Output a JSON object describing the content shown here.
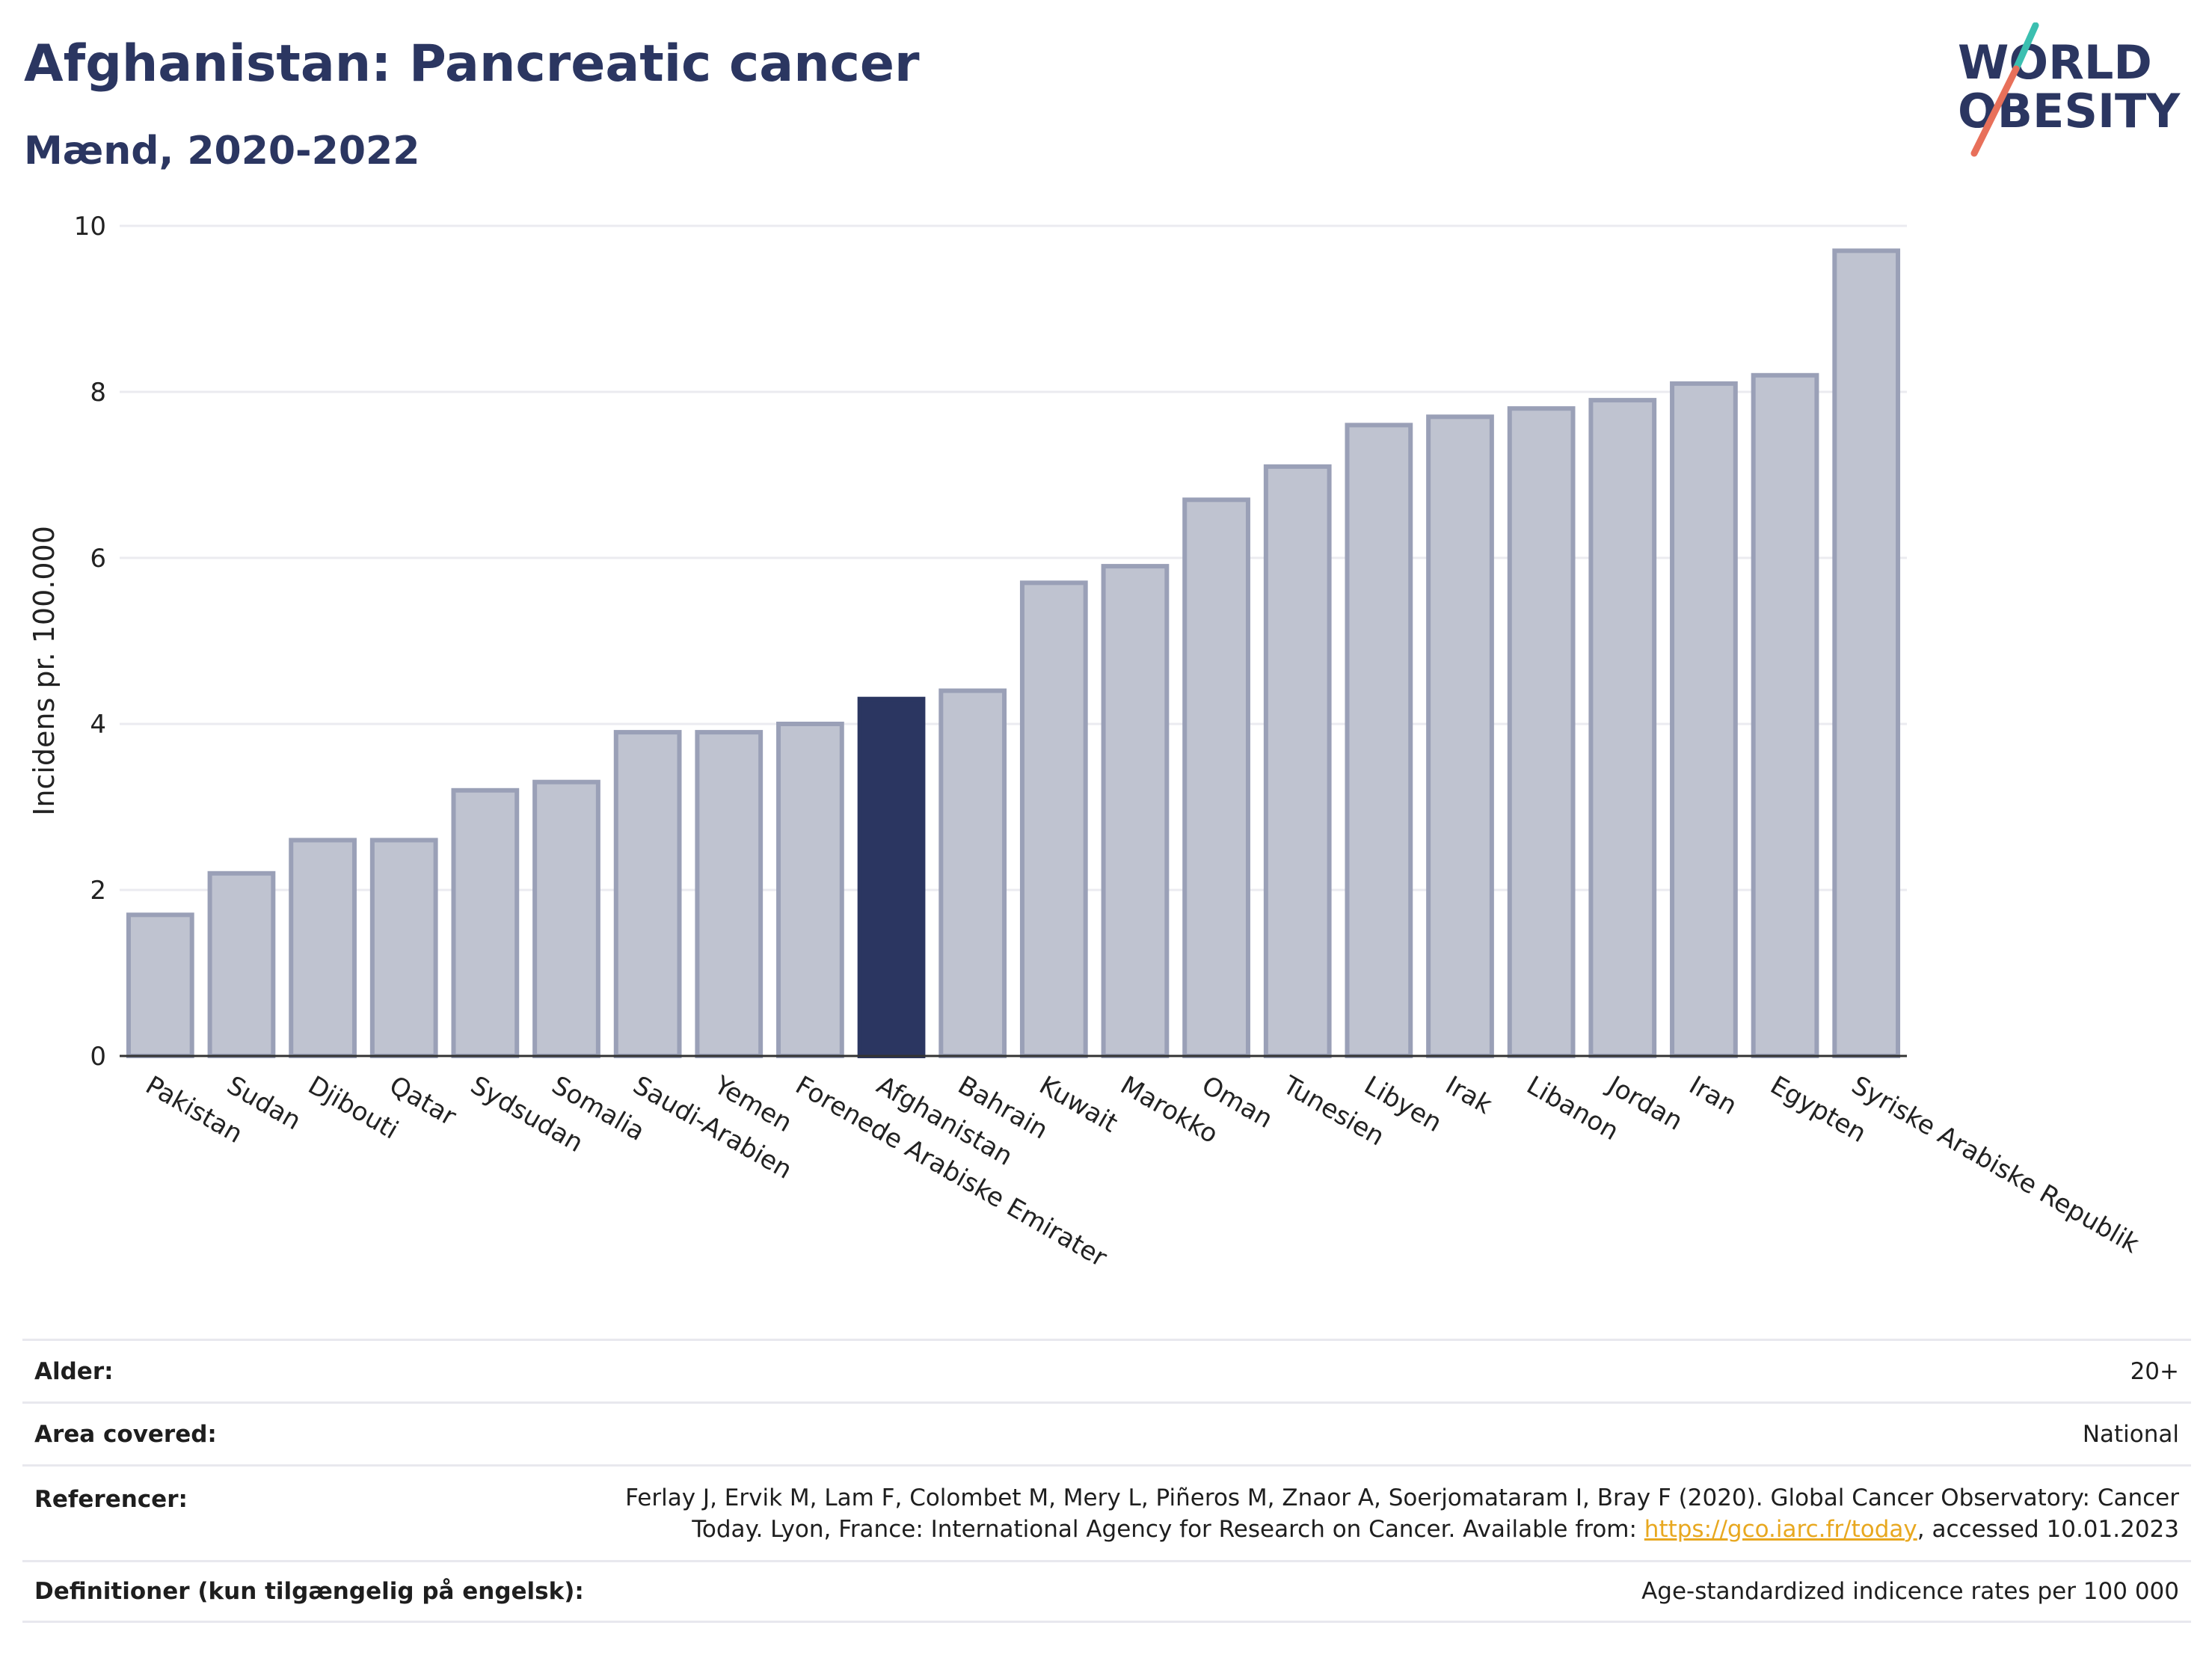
{
  "header": {
    "title": "Afghanistan: Pancreatic cancer",
    "subtitle": "Mænd, 2020-2022"
  },
  "logo": {
    "line1": "WORLD",
    "line2": "OBESITY",
    "accent_colors": [
      "#3bbfb0",
      "#e8705a"
    ],
    "text_color": "#2b3661"
  },
  "chart_data": {
    "type": "bar",
    "categories": [
      "Pakistan",
      "Sudan",
      "Djibouti",
      "Qatar",
      "Sydsudan",
      "Somalia",
      "Saudi-Arabien",
      "Yemen",
      "Forenede Arabiske Emirater",
      "Afghanistan",
      "Bahrain",
      "Kuwait",
      "Marokko",
      "Oman",
      "Tunesien",
      "Libyen",
      "Irak",
      "Libanon",
      "Jordan",
      "Iran",
      "Egypten",
      "Syriske Arabiske Republik"
    ],
    "values": [
      1.7,
      2.2,
      2.6,
      2.6,
      3.2,
      3.3,
      3.9,
      3.9,
      4.0,
      4.3,
      4.4,
      5.7,
      5.9,
      6.7,
      7.1,
      7.6,
      7.7,
      7.8,
      7.9,
      8.1,
      8.2,
      9.7
    ],
    "highlight": "Afghanistan",
    "ylabel": "Incidens pr. 100.000",
    "ylim": [
      0,
      10
    ],
    "yticks": [
      0,
      2,
      4,
      6,
      8,
      10
    ],
    "grid": true,
    "colors": {
      "bar": "#bfc3d0",
      "bar_edge": "#9aa0b7",
      "highlight": "#2b3661",
      "grid": "#ebebf0"
    }
  },
  "meta": [
    {
      "label": "Alder:",
      "value": "20+"
    },
    {
      "label": "Area covered:",
      "value": "National"
    },
    {
      "label": "Referencer:",
      "value_line1": "Ferlay J, Ervik M, Lam F, Colombet M, Mery L, Piñeros M, Znaor A, Soerjomataram I, Bray F (2020). Global Cancer Observatory: Cancer",
      "value_line2_pre": "Today. Lyon, France: International Agency for Research on Cancer. Available from: ",
      "link": "https://gco.iarc.fr/today",
      "value_line2_post": ", accessed 10.01.2023"
    },
    {
      "label": "Definitioner (kun tilgængelig på engelsk):",
      "value": "Age-standardized indicence rates per 100 000"
    }
  ]
}
